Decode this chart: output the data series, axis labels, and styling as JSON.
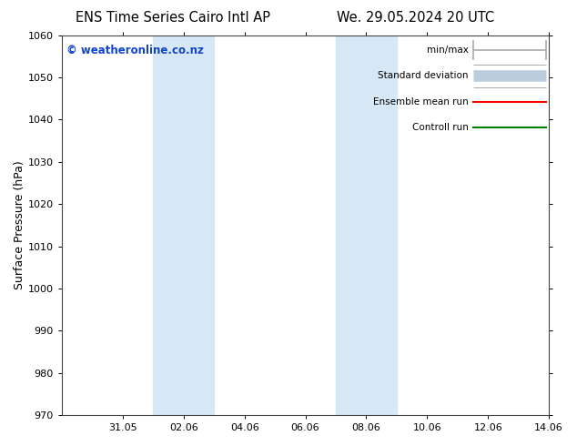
{
  "title_left": "ENS Time Series Cairo Intl AP",
  "title_right": "We. 29.05.2024 20 UTC",
  "ylabel": "Surface Pressure (hPa)",
  "ylim": [
    970,
    1060
  ],
  "yticks": [
    970,
    980,
    990,
    1000,
    1010,
    1020,
    1030,
    1040,
    1050,
    1060
  ],
  "xlim": [
    0,
    16
  ],
  "xtick_labels": [
    "31.05",
    "02.06",
    "04.06",
    "06.06",
    "08.06",
    "10.06",
    "12.06",
    "14.06"
  ],
  "xtick_positions": [
    2,
    4,
    6,
    8,
    10,
    12,
    14,
    16
  ],
  "shaded_bands": [
    {
      "x_start": 3.0,
      "x_end": 3.9,
      "color": "#ddeeff"
    },
    {
      "x_start": 3.9,
      "x_end": 4.9,
      "color": "#ccddf0"
    },
    {
      "x_start": 9.0,
      "x_end": 9.9,
      "color": "#ddeeff"
    },
    {
      "x_start": 9.9,
      "x_end": 10.9,
      "color": "#ccddf0"
    }
  ],
  "watermark_text": "© weatheronline.co.nz",
  "watermark_color": "#1144cc",
  "legend_items": [
    {
      "label": "min/max",
      "color": "#aaaaaa",
      "lw": 1.2,
      "style": "line_with_caps"
    },
    {
      "label": "Standard deviation",
      "color": "#bbccdd",
      "lw": 7,
      "style": "thick"
    },
    {
      "label": "Ensemble mean run",
      "color": "red",
      "lw": 1.5,
      "style": "line"
    },
    {
      "label": "Controll run",
      "color": "green",
      "lw": 1.5,
      "style": "line"
    }
  ],
  "bg_color": "#ffffff",
  "plot_bg_color": "#ffffff",
  "title_fontsize": 10.5,
  "axis_fontsize": 9,
  "tick_fontsize": 8,
  "legend_fontsize": 7.5
}
